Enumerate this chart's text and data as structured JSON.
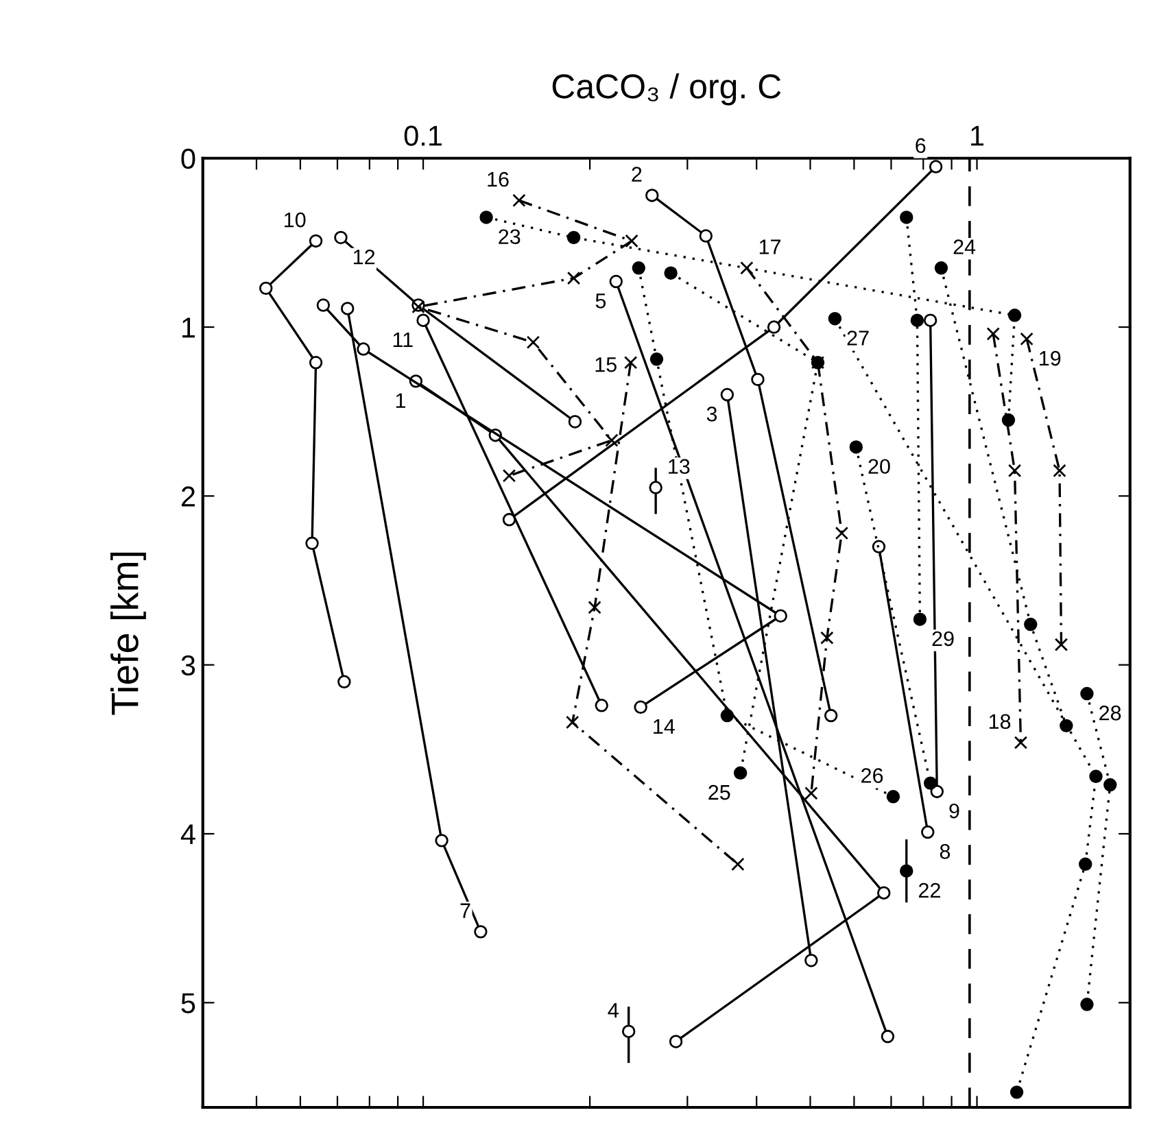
{
  "chart_data": {
    "type": "line",
    "xlabel": "CaCO₃ / org. C",
    "ylabel": "Tiefe [km]",
    "log": "x",
    "xlim": [
      0.04,
      1.89
    ],
    "ylim": [
      5.62,
      0
    ],
    "xticks": [
      {
        "value": 0.05,
        "label": null
      },
      {
        "value": 0.06,
        "label": null
      },
      {
        "value": 0.07,
        "label": null
      },
      {
        "value": 0.08,
        "label": null
      },
      {
        "value": 0.09,
        "label": null
      },
      0.1,
      {
        "value": 0.2,
        "label": null
      },
      {
        "value": 0.3,
        "label": null
      },
      {
        "value": 0.4,
        "label": null
      },
      {
        "value": 0.5,
        "label": null
      },
      {
        "value": 0.6,
        "label": null
      },
      {
        "value": 0.7,
        "label": null
      },
      {
        "value": 0.8,
        "label": null
      },
      {
        "value": 0.9,
        "label": null
      },
      1
    ],
    "yticks": [
      0,
      1,
      2,
      3,
      4,
      5
    ],
    "ref_lines": [
      {
        "axis": "x",
        "value": 0.97,
        "color": "#000000",
        "line_style": "dashed"
      }
    ],
    "series": [
      {
        "name": "1",
        "color": "#000000",
        "marker": "circle",
        "line_style": "solid",
        "x": [
          0.097,
          0.135,
          0.679,
          0.286
        ],
        "values": [
          1.32,
          1.64,
          4.35,
          5.23
        ]
      },
      {
        "name": "2",
        "color": "#000000",
        "marker": "circle",
        "line_style": "solid",
        "x": [
          0.259,
          0.324,
          0.402,
          0.545
        ],
        "values": [
          0.22,
          0.46,
          1.31,
          3.3
        ]
      },
      {
        "name": "3",
        "color": "#000000",
        "marker": "circle",
        "line_style": "solid",
        "x": [
          0.354,
          0.502
        ],
        "values": [
          1.4,
          4.75
        ]
      },
      {
        "name": "4",
        "color": "#000000",
        "marker": "circle",
        "line_style": "solid",
        "x": [
          0.235
        ],
        "values": [
          5.17
        ],
        "errors": [
          [
            5.03,
            5.35
          ]
        ]
      },
      {
        "name": "5",
        "color": "#000000",
        "marker": "circle",
        "line_style": "solid",
        "x": [
          0.223,
          0.69
        ],
        "values": [
          0.73,
          5.2
        ]
      },
      {
        "name": "6",
        "color": "#000000",
        "marker": "circle",
        "line_style": "solid",
        "x": [
          0.843,
          0.43,
          0.143
        ],
        "values": [
          0.05,
          1.0,
          2.14
        ]
      },
      {
        "name": "7",
        "color": "#000000",
        "marker": "circle",
        "line_style": "solid",
        "x": [
          0.073,
          0.108,
          0.127
        ],
        "values": [
          0.89,
          4.04,
          4.58
        ]
      },
      {
        "name": "8",
        "color": "#000000",
        "marker": "circle",
        "line_style": "solid",
        "x": [
          0.665,
          0.815
        ],
        "values": [
          2.3,
          3.99
        ]
      },
      {
        "name": "9",
        "color": "#000000",
        "marker": "circle",
        "line_style": "solid",
        "x": [
          0.824,
          0.847
        ],
        "values": [
          0.96,
          3.75
        ]
      },
      {
        "name": "10",
        "color": "#000000",
        "marker": "circle",
        "line_style": "solid",
        "x": [
          0.064,
          0.052,
          0.064,
          0.063,
          0.072
        ],
        "values": [
          0.49,
          0.77,
          1.21,
          2.28,
          3.1
        ]
      },
      {
        "name": "11",
        "color": "#000000",
        "marker": "circle",
        "line_style": "solid",
        "x": [
          0.1,
          0.21
        ],
        "values": [
          0.96,
          3.24
        ]
      },
      {
        "name": "12",
        "color": "#000000",
        "marker": "circle",
        "line_style": "solid",
        "x": [
          0.071,
          0.098,
          0.188
        ],
        "values": [
          0.47,
          0.87,
          1.56
        ]
      },
      {
        "name": "13",
        "color": "#000000",
        "marker": "circle",
        "line_style": "solid",
        "x": [
          0.263
        ],
        "values": [
          1.95
        ],
        "errors": [
          [
            1.84,
            2.1
          ]
        ]
      },
      {
        "name": "14",
        "color": "#000000",
        "marker": "circle",
        "line_style": "solid",
        "x": [
          0.066,
          0.078,
          0.442,
          0.247
        ],
        "values": [
          0.87,
          1.13,
          2.71,
          3.25
        ]
      },
      {
        "name": "15",
        "color": "#000000",
        "marker": "cross",
        "line_style": "dashdot",
        "x": [
          0.237,
          0.204,
          0.186,
          0.37
        ],
        "values": [
          1.21,
          2.66,
          3.34,
          4.18
        ]
      },
      {
        "name": "16",
        "color": "#000000",
        "marker": "cross",
        "line_style": "dashdot",
        "x": [
          0.149,
          0.238,
          0.187,
          0.098,
          0.158,
          0.219,
          0.143
        ],
        "values": [
          0.25,
          0.49,
          0.71,
          0.88,
          1.09,
          1.67,
          1.88
        ]
      },
      {
        "name": "17",
        "color": "#000000",
        "marker": "cross",
        "line_style": "dashdot",
        "x": [
          0.384,
          0.516,
          0.57,
          0.536,
          0.502
        ],
        "values": [
          0.65,
          1.21,
          2.22,
          2.84,
          3.76
        ]
      },
      {
        "name": "18",
        "color": "#000000",
        "marker": "cross",
        "line_style": "dashdot",
        "x": [
          1.07,
          1.17,
          1.2
        ],
        "values": [
          1.04,
          1.85,
          3.46
        ]
      },
      {
        "name": "19",
        "color": "#000000",
        "marker": "cross",
        "line_style": "dashdot",
        "x": [
          1.23,
          1.41,
          1.42
        ],
        "values": [
          1.07,
          1.85,
          2.88
        ]
      },
      {
        "name": "20",
        "color": "#000000",
        "marker": "circle",
        "line_style": "dotted",
        "x": [
          0.605,
          0.824
        ],
        "values": [
          1.71,
          3.7
        ]
      },
      {
        "name": "22",
        "color": "#000000",
        "marker": "circle",
        "line_style": "dotted",
        "x": [
          0.746
        ],
        "values": [
          4.22
        ],
        "errors": [
          [
            4.04,
            4.4
          ]
        ]
      },
      {
        "name": "23",
        "color": "#000000",
        "marker": "circle",
        "line_style": "dotted",
        "x": [
          0.13,
          0.187,
          1.17,
          1.14
        ],
        "values": [
          0.35,
          0.47,
          0.93,
          1.55
        ]
      },
      {
        "name": "24",
        "color": "#000000",
        "marker": "circle",
        "line_style": "dotted",
        "x": [
          0.862,
          1.25,
          1.45
        ],
        "values": [
          0.65,
          2.76,
          3.36
        ]
      },
      {
        "name": "25",
        "color": "#000000",
        "marker": "circle",
        "line_style": "dotted",
        "x": [
          0.28,
          0.516,
          0.374
        ],
        "values": [
          0.68,
          1.21,
          3.64
        ]
      },
      {
        "name": "26",
        "color": "#000000",
        "marker": "circle",
        "line_style": "dotted",
        "x": [
          0.245,
          0.264,
          0.354,
          0.706
        ],
        "values": [
          0.65,
          1.19,
          3.3,
          3.78
        ]
      },
      {
        "name": "27",
        "color": "#000000",
        "marker": "circle",
        "line_style": "dotted",
        "x": [
          0.554,
          1.64,
          1.57,
          1.18
        ],
        "values": [
          0.95,
          3.66,
          4.18,
          5.53
        ]
      },
      {
        "name": "28",
        "color": "#000000",
        "marker": "circle",
        "line_style": "dotted",
        "x": [
          1.58,
          1.74,
          1.58
        ],
        "values": [
          3.17,
          3.71,
          5.01
        ]
      },
      {
        "name": "29",
        "color": "#000000",
        "marker": "circle",
        "line_style": "dotted",
        "x": [
          0.746,
          0.78,
          0.789
        ],
        "values": [
          0.35,
          0.96,
          2.73
        ]
      }
    ]
  }
}
